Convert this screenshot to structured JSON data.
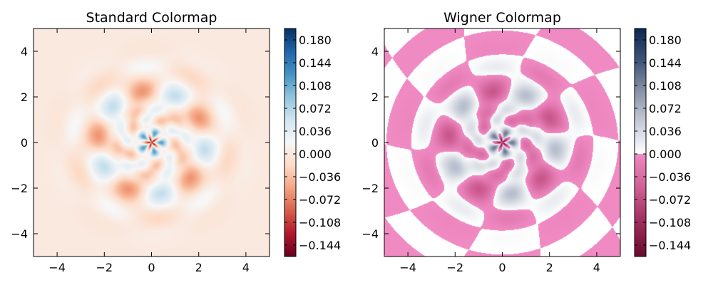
{
  "chart_data": [
    {
      "type": "heatmap",
      "title": "Standard Colormap",
      "colormap": "RdBu",
      "xlim": [
        -5,
        5
      ],
      "ylim": [
        -5,
        5
      ],
      "xticks": [
        -4,
        -2,
        0,
        2,
        4
      ],
      "yticks": [
        -4,
        -2,
        0,
        2,
        4
      ],
      "xticklabels": [
        "−4",
        "−2",
        "0",
        "2",
        "4"
      ],
      "yticklabels": [
        "−4",
        "−2",
        "0",
        "2",
        "4"
      ],
      "colorbar": {
        "range": [
          -0.162,
          0.198
        ],
        "ticks": [
          0.18,
          0.144,
          0.108,
          0.072,
          0.036,
          0.0,
          -0.036,
          -0.072,
          -0.108,
          -0.144
        ],
        "labels": [
          "0.180",
          "0.144",
          "0.108",
          "0.072",
          "0.036",
          "0.000",
          "−0.036",
          "−0.072",
          "−0.108",
          "−0.144"
        ]
      },
      "description": "Wigner function of a cat-like quantum state: positive lobes at center and on a 5-fold ring, negative fringes between them"
    },
    {
      "type": "heatmap",
      "title": "Wigner Colormap",
      "colormap": "wigner",
      "xlim": [
        -5,
        5
      ],
      "ylim": [
        -5,
        5
      ],
      "xticks": [
        -4,
        -2,
        0,
        2,
        4
      ],
      "yticks": [
        -4,
        -2,
        0,
        2,
        4
      ],
      "xticklabels": [
        "−4",
        "−2",
        "0",
        "2",
        "4"
      ],
      "yticklabels": [
        "−4",
        "−2",
        "0",
        "2",
        "4"
      ],
      "colorbar": {
        "range": [
          -0.162,
          0.198
        ],
        "ticks": [
          0.18,
          0.144,
          0.108,
          0.072,
          0.036,
          0.0,
          -0.036,
          -0.072,
          -0.108,
          -0.144
        ],
        "labels": [
          "0.180",
          "0.144",
          "0.108",
          "0.072",
          "0.036",
          "0.000",
          "−0.036",
          "−0.072",
          "−0.108",
          "−0.144"
        ]
      },
      "description": "Same Wigner function with a colormap that is white near zero, pink for negative values and navy for positive values"
    }
  ],
  "colors": {
    "rdbu": [
      "#67001f",
      "#b2182b",
      "#d6604d",
      "#f4a582",
      "#fddbc7",
      "#f7f7f7",
      "#d1e5f0",
      "#92c5de",
      "#4393c3",
      "#2166ac",
      "#053061"
    ],
    "wigner_negative": [
      "#6a0a2e",
      "#9e2d5a",
      "#cf5f95",
      "#f08ac3"
    ],
    "wigner_positive": [
      "#ffffff",
      "#c7cdd9",
      "#8893a8",
      "#3e5378",
      "#0d2750"
    ]
  }
}
